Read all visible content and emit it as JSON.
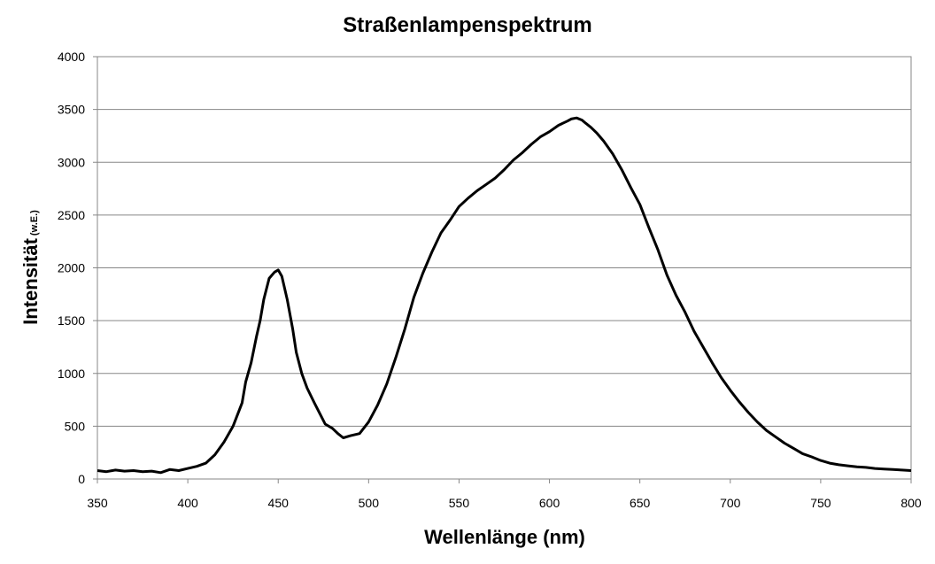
{
  "chart_data": {
    "type": "line",
    "title": "Straßenlampenspektrum",
    "xlabel": "Wellenlänge (nm)",
    "ylabel": "Intensität",
    "ylabel_unit": "(w.E.)",
    "xlim": [
      350,
      800
    ],
    "ylim": [
      0,
      4000
    ],
    "x_ticks": [
      350,
      400,
      450,
      500,
      550,
      600,
      650,
      700,
      750,
      800
    ],
    "y_ticks": [
      0,
      500,
      1000,
      1500,
      2000,
      2500,
      3000,
      3500,
      4000
    ],
    "grid": true,
    "legend": "none",
    "series": [
      {
        "color": "#000000",
        "x": [
          350,
          355,
          360,
          365,
          370,
          375,
          380,
          385,
          390,
          395,
          400,
          405,
          410,
          415,
          420,
          425,
          430,
          432,
          435,
          438,
          440,
          442,
          445,
          448,
          450,
          452,
          455,
          458,
          460,
          463,
          466,
          470,
          473,
          476,
          480,
          483,
          486,
          490,
          495,
          500,
          505,
          510,
          515,
          520,
          525,
          530,
          535,
          540,
          545,
          550,
          555,
          560,
          565,
          570,
          575,
          580,
          585,
          590,
          595,
          600,
          605,
          610,
          612,
          615,
          618,
          620,
          623,
          626,
          630,
          635,
          640,
          645,
          650,
          655,
          660,
          665,
          670,
          675,
          680,
          685,
          690,
          695,
          700,
          705,
          710,
          715,
          720,
          725,
          730,
          735,
          740,
          745,
          750,
          755,
          760,
          765,
          770,
          775,
          780,
          785,
          790,
          795,
          800
        ],
        "y": [
          80,
          70,
          85,
          75,
          80,
          70,
          75,
          60,
          90,
          80,
          100,
          120,
          150,
          230,
          350,
          500,
          720,
          920,
          1100,
          1350,
          1500,
          1700,
          1900,
          1960,
          1980,
          1920,
          1700,
          1420,
          1200,
          1000,
          860,
          720,
          620,
          520,
          480,
          430,
          390,
          410,
          430,
          540,
          700,
          900,
          1150,
          1420,
          1720,
          1950,
          2150,
          2330,
          2450,
          2580,
          2660,
          2730,
          2790,
          2850,
          2930,
          3020,
          3090,
          3170,
          3240,
          3290,
          3350,
          3390,
          3410,
          3420,
          3400,
          3370,
          3330,
          3280,
          3200,
          3080,
          2930,
          2760,
          2600,
          2380,
          2170,
          1930,
          1740,
          1580,
          1400,
          1250,
          1100,
          960,
          840,
          730,
          630,
          540,
          460,
          400,
          340,
          290,
          240,
          210,
          175,
          150,
          135,
          125,
          115,
          110,
          100,
          95,
          90,
          85,
          80
        ]
      }
    ]
  }
}
